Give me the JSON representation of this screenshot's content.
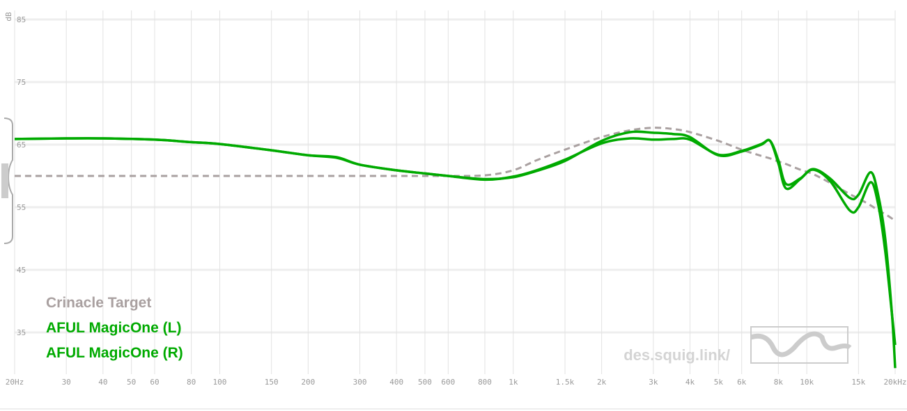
{
  "chart_data": {
    "type": "line",
    "y_label": "dB",
    "watermark": "des.squig.link/",
    "log_x": true,
    "grid": true,
    "legend": "bottom-left",
    "xlim": [
      20,
      20000
    ],
    "ylim": [
      29,
      86
    ],
    "yticks": [
      35,
      45,
      55,
      65,
      75,
      85
    ],
    "xticks": [
      {
        "value": 20,
        "label": "20Hz"
      },
      30,
      40,
      50,
      60,
      80,
      100,
      150,
      200,
      300,
      400,
      500,
      600,
      800,
      {
        "value": 1000,
        "label": "1k"
      },
      {
        "value": 1500,
        "label": "1.5k"
      },
      {
        "value": 2000,
        "label": "2k"
      },
      {
        "value": 3000,
        "label": "3k"
      },
      {
        "value": 4000,
        "label": "4k"
      },
      {
        "value": 5000,
        "label": "5k"
      },
      {
        "value": 6000,
        "label": "6k"
      },
      {
        "value": 8000,
        "label": "8k"
      },
      {
        "value": 10000,
        "label": "10k"
      },
      {
        "value": 15000,
        "label": "15k"
      },
      {
        "value": 20000,
        "label": "20kHz"
      }
    ],
    "x": [
      20,
      30,
      40,
      60,
      80,
      100,
      150,
      200,
      250,
      300,
      400,
      500,
      600,
      800,
      1000,
      1200,
      1500,
      2000,
      2500,
      3000,
      3500,
      4000,
      5000,
      6000,
      7000,
      7500,
      8000,
      8500,
      9500,
      10500,
      12000,
      14000,
      15000,
      16500,
      17500,
      18500,
      19500,
      20000
    ],
    "series": [
      {
        "name": "Crinacle Target",
        "color": "#a9a0a0",
        "dashed": true,
        "values": [
          60,
          60,
          60,
          60,
          60,
          60,
          60,
          60,
          60,
          60,
          60,
          60,
          60,
          60.1,
          60.9,
          62.5,
          64.2,
          66.2,
          67.3,
          67.7,
          67.5,
          67,
          65.6,
          64.2,
          63.2,
          62.8,
          62.3,
          61.9,
          61,
          60.3,
          58.9,
          57.1,
          56.4,
          55.3,
          54.5,
          53.9,
          53.2,
          52.8
        ]
      },
      {
        "name": "AFUL MagicOne (L)",
        "color": "#00aa00",
        "dashed": false,
        "values": [
          65.9,
          66,
          66,
          65.8,
          65.4,
          65.1,
          64.1,
          63.3,
          62.9,
          61.8,
          60.9,
          60.4,
          60,
          59.5,
          59.8,
          60.8,
          62.4,
          65.6,
          67,
          66.9,
          66.7,
          66.2,
          63.3,
          63.9,
          65,
          65.6,
          62,
          58,
          59.5,
          61.1,
          59.6,
          56.5,
          57,
          60.6,
          57,
          50,
          38,
          29.3
        ]
      },
      {
        "name": "AFUL MagicOne (R)",
        "color": "#00aa00",
        "dashed": false,
        "values": [
          65.9,
          66,
          66,
          65.8,
          65.4,
          65.1,
          64.1,
          63.3,
          63,
          61.8,
          60.9,
          60.4,
          60,
          59.4,
          59.9,
          60.9,
          62.6,
          65.2,
          66,
          65.8,
          65.9,
          65.8,
          63.4,
          64,
          65.1,
          65.6,
          62.5,
          58.7,
          59.6,
          61,
          59.2,
          54.5,
          55,
          59,
          55.5,
          48,
          38,
          33
        ]
      }
    ]
  }
}
